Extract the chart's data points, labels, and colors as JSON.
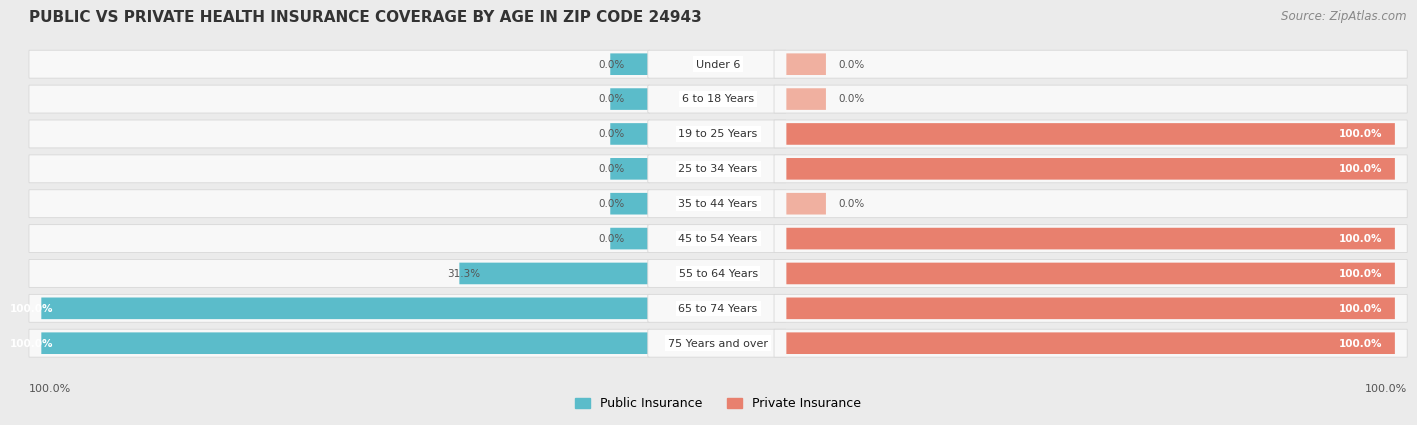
{
  "title": "PUBLIC VS PRIVATE HEALTH INSURANCE COVERAGE BY AGE IN ZIP CODE 24943",
  "source": "Source: ZipAtlas.com",
  "categories": [
    "Under 6",
    "6 to 18 Years",
    "19 to 25 Years",
    "25 to 34 Years",
    "35 to 44 Years",
    "45 to 54 Years",
    "55 to 64 Years",
    "65 to 74 Years",
    "75 Years and over"
  ],
  "public_values": [
    0.0,
    0.0,
    0.0,
    0.0,
    0.0,
    0.0,
    31.3,
    100.0,
    100.0
  ],
  "private_values": [
    0.0,
    0.0,
    100.0,
    100.0,
    0.0,
    100.0,
    100.0,
    100.0,
    100.0
  ],
  "public_color": "#5bbcca",
  "private_color": "#e8806e",
  "private_color_light": "#f0b0a0",
  "background_color": "#ebebeb",
  "bar_background_color": "#f8f8f8",
  "bar_border_color": "#d8d8d8",
  "title_fontsize": 11,
  "source_fontsize": 8.5,
  "max_val": 100,
  "stub_size": 6.5,
  "x_left_label": "100.0%",
  "x_right_label": "100.0%",
  "legend_public": "Public Insurance",
  "legend_private": "Private Insurance"
}
